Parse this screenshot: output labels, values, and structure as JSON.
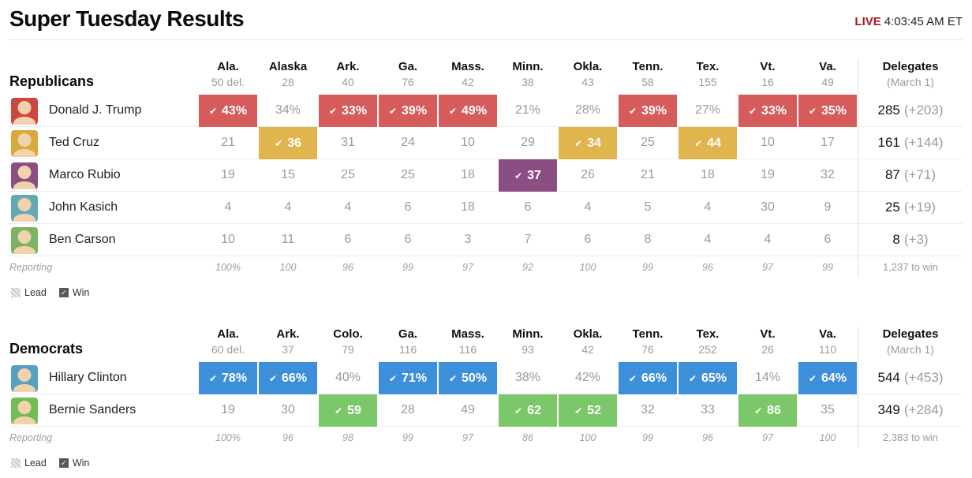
{
  "header": {
    "title": "Super Tuesday Results",
    "live_label": "LIVE",
    "live_time": "4:03:45 AM ET"
  },
  "legend": {
    "lead_label": "Lead",
    "win_label": "Win"
  },
  "colors": {
    "live_red": "#a8181d",
    "row_border": "#ececec",
    "column_divider": "#dddddd",
    "muted_text": "#9b9b9b"
  },
  "tables": [
    {
      "party": "Republicans",
      "columns": [
        {
          "abbr": "Ala.",
          "del": "50 del."
        },
        {
          "abbr": "Alaska",
          "del": "28"
        },
        {
          "abbr": "Ark.",
          "del": "40"
        },
        {
          "abbr": "Ga.",
          "del": "76"
        },
        {
          "abbr": "Mass.",
          "del": "42"
        },
        {
          "abbr": "Minn.",
          "del": "38"
        },
        {
          "abbr": "Okla.",
          "del": "43"
        },
        {
          "abbr": "Tenn.",
          "del": "58"
        },
        {
          "abbr": "Tex.",
          "del": "155"
        },
        {
          "abbr": "Vt.",
          "del": "16"
        },
        {
          "abbr": "Va.",
          "del": "49"
        }
      ],
      "delegates_header": {
        "title": "Delegates",
        "subtitle": "(March 1)"
      },
      "rows": [
        {
          "name": "Donald J. Trump",
          "color": "#d65c5c",
          "avatar_color": "#cb4741",
          "cells": [
            {
              "v": "43%",
              "win": true
            },
            {
              "v": "34%"
            },
            {
              "v": "33%",
              "win": true
            },
            {
              "v": "39%",
              "win": true
            },
            {
              "v": "49%",
              "win": true
            },
            {
              "v": "21%"
            },
            {
              "v": "28%"
            },
            {
              "v": "39%",
              "win": true
            },
            {
              "v": "27%"
            },
            {
              "v": "33%",
              "win": true
            },
            {
              "v": "35%",
              "win": true
            }
          ],
          "delegates": "285",
          "delta": "(+203)"
        },
        {
          "name": "Ted Cruz",
          "color": "#e0b54e",
          "avatar_color": "#d9a93f",
          "cells": [
            {
              "v": "21"
            },
            {
              "v": "36",
              "win": true
            },
            {
              "v": "31"
            },
            {
              "v": "24"
            },
            {
              "v": "10"
            },
            {
              "v": "29"
            },
            {
              "v": "34",
              "win": true
            },
            {
              "v": "25"
            },
            {
              "v": "44",
              "win": true
            },
            {
              "v": "10"
            },
            {
              "v": "17"
            }
          ],
          "delegates": "161",
          "delta": "(+144)"
        },
        {
          "name": "Marco Rubio",
          "color": "#8a4e83",
          "avatar_color": "#8a4e83",
          "cells": [
            {
              "v": "19"
            },
            {
              "v": "15"
            },
            {
              "v": "25"
            },
            {
              "v": "25"
            },
            {
              "v": "18"
            },
            {
              "v": "37",
              "win": true
            },
            {
              "v": "26"
            },
            {
              "v": "21"
            },
            {
              "v": "18"
            },
            {
              "v": "19"
            },
            {
              "v": "32"
            }
          ],
          "delegates": "87",
          "delta": "(+71)"
        },
        {
          "name": "John Kasich",
          "color": "#63a9b5",
          "avatar_color": "#63a9b5",
          "cells": [
            {
              "v": "4"
            },
            {
              "v": "4"
            },
            {
              "v": "4"
            },
            {
              "v": "6"
            },
            {
              "v": "18"
            },
            {
              "v": "6"
            },
            {
              "v": "4"
            },
            {
              "v": "5"
            },
            {
              "v": "4"
            },
            {
              "v": "30"
            },
            {
              "v": "9"
            }
          ],
          "delegates": "25",
          "delta": "(+19)"
        },
        {
          "name": "Ben Carson",
          "color": "#7bb263",
          "avatar_color": "#7bb263",
          "cells": [
            {
              "v": "10"
            },
            {
              "v": "11"
            },
            {
              "v": "6"
            },
            {
              "v": "6"
            },
            {
              "v": "3"
            },
            {
              "v": "7"
            },
            {
              "v": "6"
            },
            {
              "v": "8"
            },
            {
              "v": "4"
            },
            {
              "v": "4"
            },
            {
              "v": "6"
            }
          ],
          "delegates": "8",
          "delta": "(+3)"
        }
      ],
      "reporting": {
        "label": "Reporting",
        "values": [
          "100%",
          "100",
          "96",
          "99",
          "97",
          "92",
          "100",
          "99",
          "96",
          "97",
          "99"
        ],
        "to_win": "1,237 to win"
      }
    },
    {
      "party": "Democrats",
      "columns": [
        {
          "abbr": "Ala.",
          "del": "60 del."
        },
        {
          "abbr": "Ark.",
          "del": "37"
        },
        {
          "abbr": "Colo.",
          "del": "79"
        },
        {
          "abbr": "Ga.",
          "del": "116"
        },
        {
          "abbr": "Mass.",
          "del": "116"
        },
        {
          "abbr": "Minn.",
          "del": "93"
        },
        {
          "abbr": "Okla.",
          "del": "42"
        },
        {
          "abbr": "Tenn.",
          "del": "76"
        },
        {
          "abbr": "Tex.",
          "del": "252"
        },
        {
          "abbr": "Vt.",
          "del": "26"
        },
        {
          "abbr": "Va.",
          "del": "110"
        }
      ],
      "delegates_header": {
        "title": "Delegates",
        "subtitle": "(March 1)"
      },
      "rows": [
        {
          "name": "Hillary Clinton",
          "color": "#3d8fd9",
          "avatar_color": "#55a1c0",
          "cells": [
            {
              "v": "78%",
              "win": true
            },
            {
              "v": "66%",
              "win": true
            },
            {
              "v": "40%"
            },
            {
              "v": "71%",
              "win": true
            },
            {
              "v": "50%",
              "win": true
            },
            {
              "v": "38%"
            },
            {
              "v": "42%"
            },
            {
              "v": "66%",
              "win": true
            },
            {
              "v": "65%",
              "win": true
            },
            {
              "v": "14%"
            },
            {
              "v": "64%",
              "win": true
            }
          ],
          "delegates": "544",
          "delta": "(+453)"
        },
        {
          "name": "Bernie Sanders",
          "color": "#7cc76a",
          "avatar_color": "#72bd54",
          "cells": [
            {
              "v": "19"
            },
            {
              "v": "30"
            },
            {
              "v": "59",
              "win": true
            },
            {
              "v": "28"
            },
            {
              "v": "49"
            },
            {
              "v": "62",
              "win": true
            },
            {
              "v": "52",
              "win": true
            },
            {
              "v": "32"
            },
            {
              "v": "33"
            },
            {
              "v": "86",
              "win": true
            },
            {
              "v": "35"
            }
          ],
          "delegates": "349",
          "delta": "(+284)"
        }
      ],
      "reporting": {
        "label": "Reporting",
        "values": [
          "100%",
          "96",
          "98",
          "99",
          "97",
          "86",
          "100",
          "99",
          "96",
          "97",
          "100"
        ],
        "to_win": "2,383 to win"
      }
    }
  ],
  "chart_data": [
    {
      "type": "table",
      "title": "Super Tuesday Results — Republicans",
      "categories": [
        "Ala.",
        "Alaska",
        "Ark.",
        "Ga.",
        "Mass.",
        "Minn.",
        "Okla.",
        "Tenn.",
        "Tex.",
        "Vt.",
        "Va."
      ],
      "state_delegates": [
        50,
        28,
        40,
        76,
        42,
        38,
        43,
        58,
        155,
        16,
        49
      ],
      "series": [
        {
          "name": "Donald J. Trump",
          "values": [
            43,
            34,
            33,
            39,
            49,
            21,
            28,
            39,
            27,
            33,
            35
          ],
          "unit": "percent",
          "wins": [
            "Ala.",
            "Ark.",
            "Ga.",
            "Mass.",
            "Tenn.",
            "Vt.",
            "Va."
          ],
          "delegates": 285,
          "delegates_gained": 203
        },
        {
          "name": "Ted Cruz",
          "values": [
            21,
            36,
            31,
            24,
            10,
            29,
            34,
            25,
            44,
            10,
            17
          ],
          "unit": "percent",
          "wins": [
            "Alaska",
            "Okla.",
            "Tex."
          ],
          "delegates": 161,
          "delegates_gained": 144
        },
        {
          "name": "Marco Rubio",
          "values": [
            19,
            15,
            25,
            25,
            18,
            37,
            26,
            21,
            18,
            19,
            32
          ],
          "unit": "percent",
          "wins": [
            "Minn."
          ],
          "delegates": 87,
          "delegates_gained": 71
        },
        {
          "name": "John Kasich",
          "values": [
            4,
            4,
            4,
            6,
            18,
            6,
            4,
            5,
            4,
            30,
            9
          ],
          "unit": "percent",
          "wins": [],
          "delegates": 25,
          "delegates_gained": 19
        },
        {
          "name": "Ben Carson",
          "values": [
            10,
            11,
            6,
            6,
            3,
            7,
            6,
            8,
            4,
            4,
            6
          ],
          "unit": "percent",
          "wins": [],
          "delegates": 8,
          "delegates_gained": 3
        }
      ],
      "reporting_percent": [
        100,
        100,
        96,
        99,
        97,
        92,
        100,
        99,
        96,
        97,
        99
      ],
      "delegates_to_win": 1237
    },
    {
      "type": "table",
      "title": "Super Tuesday Results — Democrats",
      "categories": [
        "Ala.",
        "Ark.",
        "Colo.",
        "Ga.",
        "Mass.",
        "Minn.",
        "Okla.",
        "Tenn.",
        "Tex.",
        "Vt.",
        "Va."
      ],
      "state_delegates": [
        60,
        37,
        79,
        116,
        116,
        93,
        42,
        76,
        252,
        26,
        110
      ],
      "series": [
        {
          "name": "Hillary Clinton",
          "values": [
            78,
            66,
            40,
            71,
            50,
            38,
            42,
            66,
            65,
            14,
            64
          ],
          "unit": "percent",
          "wins": [
            "Ala.",
            "Ark.",
            "Ga.",
            "Mass.",
            "Tenn.",
            "Tex.",
            "Va."
          ],
          "delegates": 544,
          "delegates_gained": 453
        },
        {
          "name": "Bernie Sanders",
          "values": [
            19,
            30,
            59,
            28,
            49,
            62,
            52,
            32,
            33,
            86,
            35
          ],
          "unit": "percent",
          "wins": [
            "Colo.",
            "Minn.",
            "Okla.",
            "Vt."
          ],
          "delegates": 349,
          "delegates_gained": 284
        }
      ],
      "reporting_percent": [
        100,
        96,
        98,
        99,
        97,
        86,
        100,
        99,
        96,
        97,
        100
      ],
      "delegates_to_win": 2383
    }
  ]
}
